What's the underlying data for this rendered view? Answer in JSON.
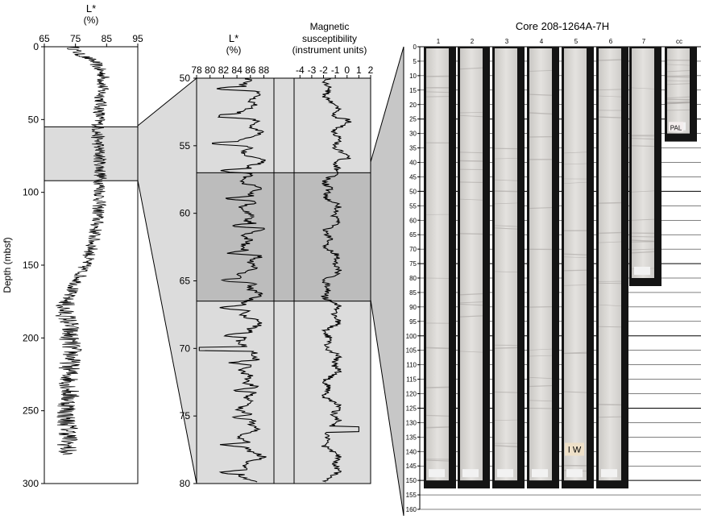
{
  "panel1": {
    "title_line1": "L*",
    "title_line2": "(%)",
    "ylabel": "Depth (mbsf)",
    "xticks": [
      "65",
      "75",
      "85",
      "95"
    ],
    "xlim": [
      65,
      95
    ],
    "yticks": [
      "0",
      "50",
      "100",
      "150",
      "200",
      "250",
      "300"
    ],
    "ylim": [
      0,
      300
    ],
    "highlight_depth": [
      55,
      92
    ]
  },
  "panel2": {
    "lstar_title_line1": "L*",
    "lstar_title_line2": "(%)",
    "lstar_xticks": [
      "78",
      "80",
      "82",
      "84",
      "86",
      "88"
    ],
    "lstar_xlim": [
      78,
      89.5
    ],
    "ms_title_line1": "Magnetic",
    "ms_title_line2": "susceptibility",
    "ms_title_line3": "(instrument units)",
    "ms_xticks": [
      "-4",
      "-3",
      "-2",
      "-1",
      "0",
      "1",
      "2"
    ],
    "ms_xlim": [
      -4.5,
      2
    ],
    "yticks": [
      "50",
      "55",
      "60",
      "65",
      "70",
      "75",
      "80"
    ],
    "ylim": [
      50,
      80
    ],
    "dark_band_depth": [
      57,
      66.5
    ]
  },
  "core": {
    "title": "Core 208-1264A-7H",
    "section_labels": [
      "1",
      "2",
      "3",
      "4",
      "5",
      "6",
      "7",
      "cc"
    ],
    "depth_ticks_cm": [
      "0",
      "5",
      "10",
      "15",
      "20",
      "25",
      "30",
      "35",
      "40",
      "45",
      "50",
      "55",
      "60",
      "65",
      "70",
      "75",
      "80",
      "85",
      "90",
      "95",
      "100",
      "105",
      "110",
      "115",
      "120",
      "125",
      "130",
      "135",
      "140",
      "145",
      "150",
      "155",
      "160"
    ],
    "section_lengths_cm": [
      150,
      150,
      150,
      150,
      150,
      150,
      80,
      30
    ],
    "handwritten_cc": "PAL",
    "handwritten_5": "I W",
    "colors": {
      "core": "#dcdad6",
      "tray": "#141414",
      "panel": "#dcdcdc",
      "band": "#bcbcbc"
    }
  }
}
